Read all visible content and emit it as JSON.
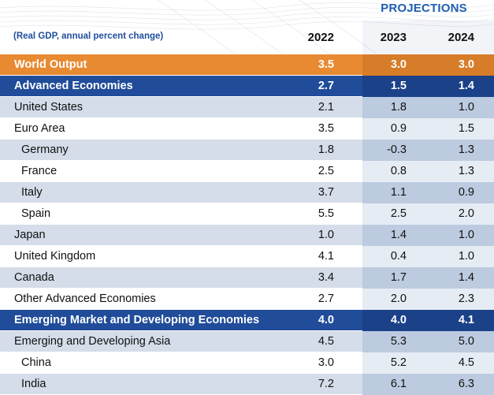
{
  "header": {
    "projections_label": "PROJECTIONS",
    "unit_note": "(Real GDP, annual percent change)",
    "years": [
      "2022",
      "2023",
      "2024"
    ]
  },
  "rows": [
    {
      "label": "World Output",
      "values": [
        "3.5",
        "3.0",
        "3.0"
      ],
      "style": "world"
    },
    {
      "label": "Advanced Economies",
      "values": [
        "2.7",
        "1.5",
        "1.4"
      ],
      "style": "blue"
    },
    {
      "label": "United States",
      "values": [
        "2.1",
        "1.8",
        "1.0"
      ],
      "style": "shaded"
    },
    {
      "label": "Euro Area",
      "values": [
        "3.5",
        "0.9",
        "1.5"
      ],
      "style": "plain"
    },
    {
      "label": "Germany",
      "values": [
        "1.8",
        "-0.3",
        "1.3"
      ],
      "style": "shaded",
      "indent": true
    },
    {
      "label": "France",
      "values": [
        "2.5",
        "0.8",
        "1.3"
      ],
      "style": "plain",
      "indent": true
    },
    {
      "label": "Italy",
      "values": [
        "3.7",
        "1.1",
        "0.9"
      ],
      "style": "shaded",
      "indent": true
    },
    {
      "label": "Spain",
      "values": [
        "5.5",
        "2.5",
        "2.0"
      ],
      "style": "plain",
      "indent": true
    },
    {
      "label": "Japan",
      "values": [
        "1.0",
        "1.4",
        "1.0"
      ],
      "style": "shaded"
    },
    {
      "label": "United Kingdom",
      "values": [
        "4.1",
        "0.4",
        "1.0"
      ],
      "style": "plain"
    },
    {
      "label": "Canada",
      "values": [
        "3.4",
        "1.7",
        "1.4"
      ],
      "style": "shaded"
    },
    {
      "label": "Other Advanced Economies",
      "values": [
        "2.7",
        "2.0",
        "2.3"
      ],
      "style": "plain"
    },
    {
      "label": "Emerging Market and Developing Economies",
      "values": [
        "4.0",
        "4.0",
        "4.1"
      ],
      "style": "blue"
    },
    {
      "label": "Emerging and Developing Asia",
      "values": [
        "4.5",
        "5.3",
        "5.0"
      ],
      "style": "shaded"
    },
    {
      "label": "China",
      "values": [
        "3.0",
        "5.2",
        "4.5"
      ],
      "style": "plain",
      "indent": true
    },
    {
      "label": "India",
      "values": [
        "7.2",
        "6.1",
        "6.3"
      ],
      "style": "shaded",
      "indent": true
    }
  ],
  "colors": {
    "world_orange": "#e88a31",
    "header_blue": "#204c9a",
    "row_shade": "#d4dde9",
    "projection_accent": "#1f5fb0"
  }
}
